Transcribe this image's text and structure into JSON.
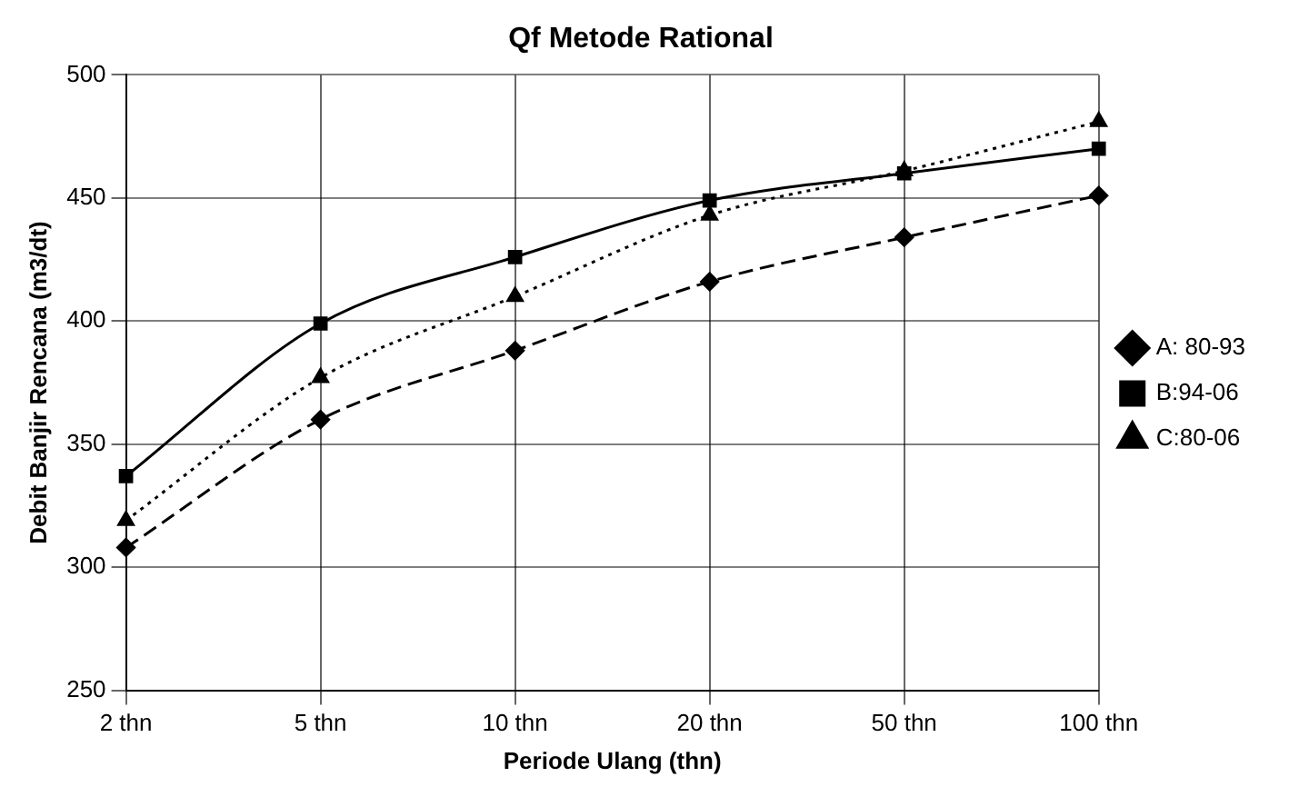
{
  "chart_data": {
    "type": "line",
    "title": "Qf Metode Rational",
    "xlabel": "Periode Ulang (thn)",
    "ylabel": "Debit Banjir Rencana (m3/dt)",
    "categories": [
      "2 thn",
      "5 thn",
      "10 thn",
      "20 thn",
      "50 thn",
      "100 thn"
    ],
    "series": [
      {
        "name": "A: 80-93",
        "color": "#000000",
        "marker": "diamond",
        "line_style": "dashed",
        "values": [
          308,
          360,
          388,
          416,
          434,
          451
        ]
      },
      {
        "name": "B:94-06",
        "color": "#000000",
        "marker": "square",
        "line_style": "solid",
        "values": [
          337,
          399,
          426,
          449,
          460,
          470
        ]
      },
      {
        "name": "C:80-06",
        "color": "#000000",
        "marker": "triangle",
        "line_style": "dotted",
        "values": [
          319,
          377,
          410,
          443,
          461,
          481
        ]
      }
    ],
    "ylim": [
      250,
      500
    ],
    "yticks": [
      250,
      300,
      350,
      400,
      450,
      500
    ],
    "grid": true,
    "legend": "right"
  }
}
